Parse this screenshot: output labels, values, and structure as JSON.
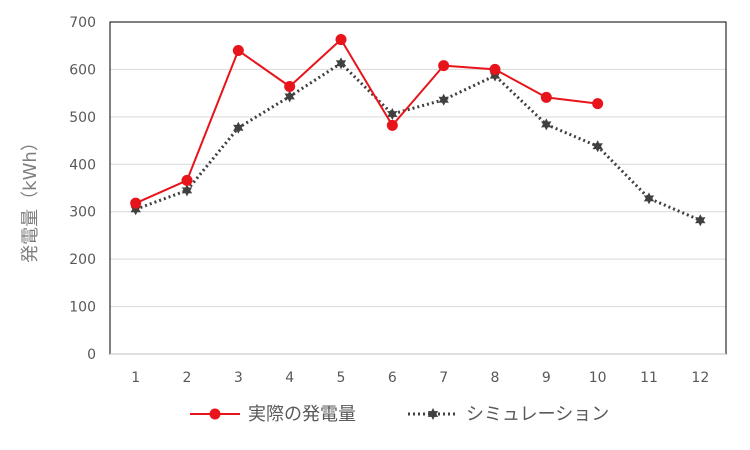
{
  "chart_data": {
    "type": "line",
    "title": "",
    "xlabel": "",
    "ylabel": "発電量（kWh）",
    "ylim": [
      0,
      700
    ],
    "y_ticks": [
      0,
      100,
      200,
      300,
      400,
      500,
      600,
      700
    ],
    "categories": [
      "1",
      "2",
      "3",
      "4",
      "5",
      "6",
      "7",
      "8",
      "9",
      "10",
      "11",
      "12"
    ],
    "grid": true,
    "legend_position": "bottom",
    "series": [
      {
        "name": "実際の発電量",
        "color": "#e8141b",
        "style": "solid-line-circle-markers",
        "values": [
          318,
          366,
          640,
          564,
          663,
          482,
          608,
          600,
          541,
          528,
          null,
          null
        ]
      },
      {
        "name": "シミュレーション",
        "color": "#404040",
        "style": "dotted-line-star-markers",
        "values": [
          305,
          345,
          477,
          543,
          613,
          506,
          536,
          587,
          484,
          438,
          328,
          282
        ]
      }
    ]
  }
}
